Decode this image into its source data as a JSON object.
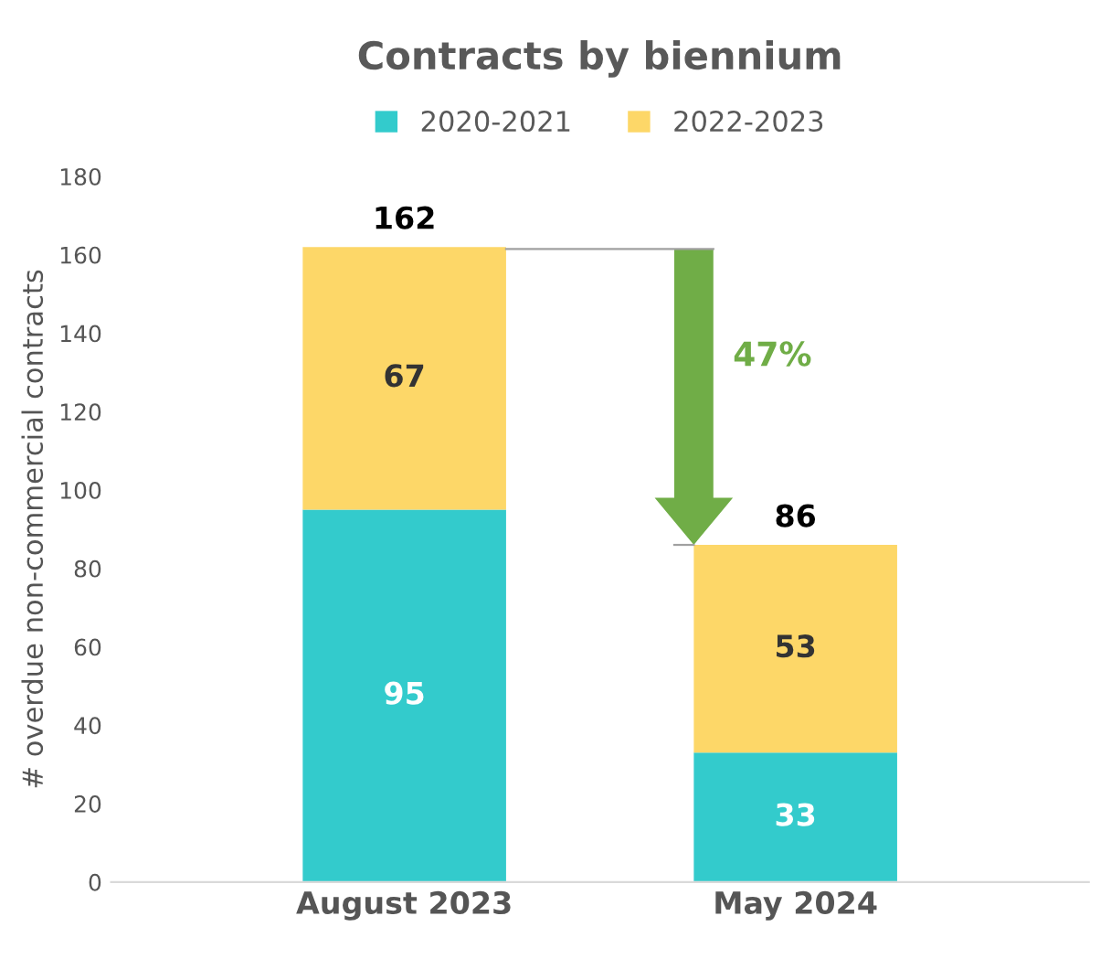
{
  "chart_data": {
    "type": "bar",
    "title": "Contracts by biennium",
    "ylabel": "# overdue non-commercial contracts",
    "categories": [
      "August 2023",
      "May 2024"
    ],
    "series": [
      {
        "name": "2020-2021",
        "color": "#33cbcc",
        "values": [
          95,
          33
        ]
      },
      {
        "name": "2022-2023",
        "color": "#fdd768",
        "values": [
          67,
          53
        ]
      }
    ],
    "stacked": true,
    "data_labels": true,
    "totals": [
      "162",
      "86"
    ],
    "ylim": [
      0,
      180
    ],
    "yticks": [
      0,
      20,
      40,
      60,
      80,
      100,
      120,
      140,
      160,
      180
    ],
    "grid": false,
    "legend": "top",
    "annotations": [
      "47%"
    ]
  }
}
